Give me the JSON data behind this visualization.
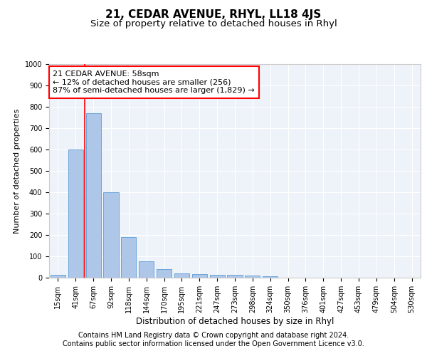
{
  "title1": "21, CEDAR AVENUE, RHYL, LL18 4JS",
  "title2": "Size of property relative to detached houses in Rhyl",
  "xlabel": "Distribution of detached houses by size in Rhyl",
  "ylabel": "Number of detached properties",
  "categories": [
    "15sqm",
    "41sqm",
    "67sqm",
    "92sqm",
    "118sqm",
    "144sqm",
    "170sqm",
    "195sqm",
    "221sqm",
    "247sqm",
    "273sqm",
    "298sqm",
    "324sqm",
    "350sqm",
    "376sqm",
    "401sqm",
    "427sqm",
    "453sqm",
    "479sqm",
    "504sqm",
    "530sqm"
  ],
  "values": [
    15,
    600,
    770,
    400,
    190,
    78,
    40,
    20,
    17,
    12,
    15,
    10,
    8,
    0,
    0,
    0,
    0,
    0,
    0,
    0,
    0
  ],
  "bar_color": "#aec6e8",
  "bar_edge_color": "#5a9ed6",
  "vline_x": 1.5,
  "vline_color": "red",
  "annotation_text": "21 CEDAR AVENUE: 58sqm\n← 12% of detached houses are smaller (256)\n87% of semi-detached houses are larger (1,829) →",
  "annotation_box_color": "white",
  "annotation_box_edge_color": "red",
  "ylim": [
    0,
    1000
  ],
  "yticks": [
    0,
    100,
    200,
    300,
    400,
    500,
    600,
    700,
    800,
    900,
    1000
  ],
  "footer1": "Contains HM Land Registry data © Crown copyright and database right 2024.",
  "footer2": "Contains public sector information licensed under the Open Government Licence v3.0.",
  "background_color": "#eef2f9",
  "grid_color": "white",
  "title1_fontsize": 11,
  "title2_fontsize": 9.5,
  "annotation_fontsize": 8,
  "footer_fontsize": 7,
  "tick_fontsize": 7,
  "ylabel_fontsize": 8,
  "xlabel_fontsize": 8.5
}
